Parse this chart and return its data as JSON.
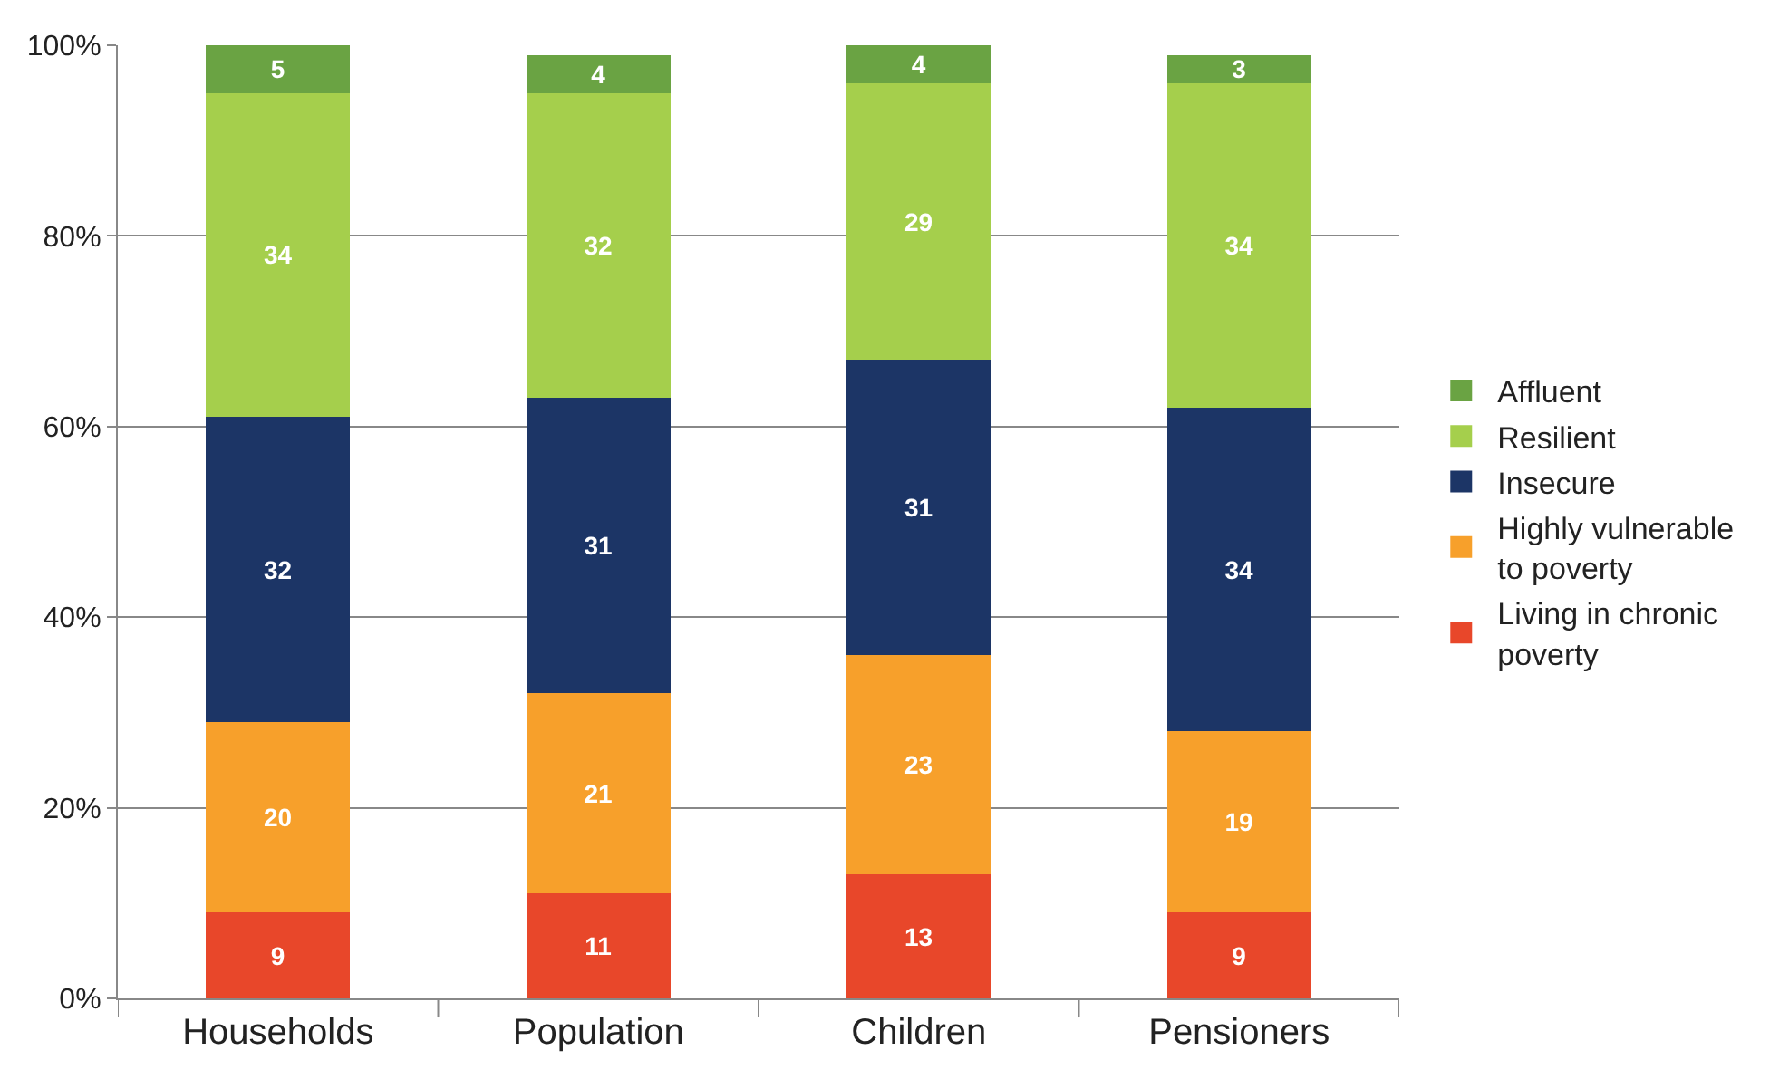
{
  "chart_data": {
    "type": "bar",
    "stacked": true,
    "data_labels": true,
    "grid": "y",
    "legend": "right",
    "categories": [
      "Households",
      "Population",
      "Children",
      "Pensioners"
    ],
    "series": [
      {
        "name": "Living in chronic\npoverty",
        "color": "#e8472a",
        "values": [
          9,
          11,
          13,
          9
        ]
      },
      {
        "name": "Highly vulnerable\nto poverty",
        "color": "#f7a02b",
        "values": [
          20,
          21,
          23,
          19
        ]
      },
      {
        "name": "Insecure",
        "color": "#1c3566",
        "values": [
          32,
          31,
          31,
          34
        ]
      },
      {
        "name": "Resilient",
        "color": "#a5cf4c",
        "values": [
          34,
          32,
          29,
          34
        ]
      },
      {
        "name": "Affluent",
        "color": "#6aa343",
        "values": [
          5,
          4,
          4,
          3
        ]
      }
    ],
    "ylim": [
      0,
      100
    ],
    "yticks": [
      {
        "value": 0,
        "label": "0%"
      },
      {
        "value": 20,
        "label": "20%"
      },
      {
        "value": 40,
        "label": "40%"
      },
      {
        "value": 60,
        "label": "60%"
      },
      {
        "value": 80,
        "label": "80%"
      },
      {
        "value": 100,
        "label": "100%"
      }
    ]
  }
}
